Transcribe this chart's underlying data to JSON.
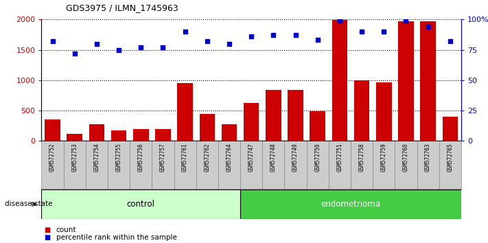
{
  "title": "GDS3975 / ILMN_1745963",
  "samples": [
    "GSM572752",
    "GSM572753",
    "GSM572754",
    "GSM572755",
    "GSM572756",
    "GSM572757",
    "GSM572761",
    "GSM572762",
    "GSM572764",
    "GSM572747",
    "GSM572748",
    "GSM572749",
    "GSM572750",
    "GSM572751",
    "GSM572758",
    "GSM572759",
    "GSM572760",
    "GSM572763",
    "GSM572765"
  ],
  "counts": [
    350,
    120,
    270,
    170,
    200,
    200,
    950,
    440,
    280,
    620,
    840,
    840,
    490,
    1990,
    1000,
    960,
    1970,
    1970,
    400
  ],
  "percentiles": [
    82,
    72,
    80,
    75,
    77,
    77,
    90,
    82,
    80,
    86,
    87,
    87,
    83,
    99,
    90,
    90,
    99,
    94,
    82
  ],
  "control_count": 9,
  "endometrioma_count": 10,
  "ylim_left": [
    0,
    2000
  ],
  "ylim_right": [
    0,
    100
  ],
  "yticks_left": [
    0,
    500,
    1000,
    1500,
    2000
  ],
  "yticks_right": [
    0,
    25,
    50,
    75,
    100
  ],
  "ytick_labels_right": [
    "0",
    "25",
    "50",
    "75",
    "100%"
  ],
  "bar_color": "#cc0000",
  "dot_color": "#0000cc",
  "control_bg": "#ccffcc",
  "endometrioma_bg": "#44cc44",
  "label_bg": "#cccccc",
  "legend_count_label": "count",
  "legend_percentile_label": "percentile rank within the sample",
  "disease_state_label": "disease state",
  "control_label": "control",
  "endometrioma_label": "endometrioma"
}
